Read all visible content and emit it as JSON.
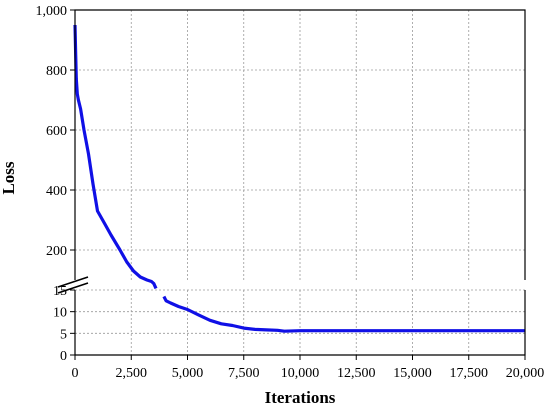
{
  "chart_data": {
    "type": "line",
    "xlabel": "Iterations",
    "ylabel": "Loss",
    "xlim": [
      0,
      20000
    ],
    "x_ticks": [
      0,
      2500,
      5000,
      7500,
      10000,
      12500,
      15000,
      17500,
      20000
    ],
    "x_tick_labels": [
      "0",
      "2,500",
      "5,000",
      "7,500",
      "10,000",
      "12,500",
      "15,000",
      "17,500",
      "20,000"
    ],
    "y_axis_break": true,
    "y_upper_range": [
      100,
      1000
    ],
    "y_upper_ticks": [
      200,
      400,
      600,
      800,
      1000
    ],
    "y_upper_tick_labels": [
      "200",
      "400",
      "600",
      "800",
      "1,000"
    ],
    "y_lower_range": [
      0,
      15
    ],
    "y_lower_ticks": [
      0,
      5,
      10,
      15
    ],
    "y_lower_tick_labels": [
      "0",
      "5",
      "10",
      "15"
    ],
    "grid": true,
    "line_color": "#1010e6",
    "series": [
      {
        "segment": "upper",
        "x": [
          0,
          30,
          60,
          100,
          150,
          250,
          400,
          600,
          800,
          1000,
          1300,
          1600,
          2000,
          2300,
          2600,
          2900,
          3200,
          3400,
          3500,
          3600
        ],
        "y": [
          950,
          850,
          770,
          720,
          700,
          670,
          600,
          520,
          420,
          330,
          290,
          250,
          200,
          160,
          130,
          110,
          100,
          95,
          88,
          72
        ]
      },
      {
        "segment": "lower",
        "x": [
          3950,
          4050,
          4250,
          4600,
          5000,
          5500,
          6000,
          6500,
          7000,
          7500,
          8000,
          8500,
          9000,
          9300,
          10000,
          12000,
          15000,
          17500,
          20000
        ],
        "y": [
          13.5,
          12.5,
          12,
          11.2,
          10.5,
          9.2,
          8.0,
          7.2,
          6.8,
          6.2,
          5.9,
          5.8,
          5.7,
          5.5,
          5.6,
          5.6,
          5.6,
          5.6,
          5.6
        ]
      }
    ]
  }
}
